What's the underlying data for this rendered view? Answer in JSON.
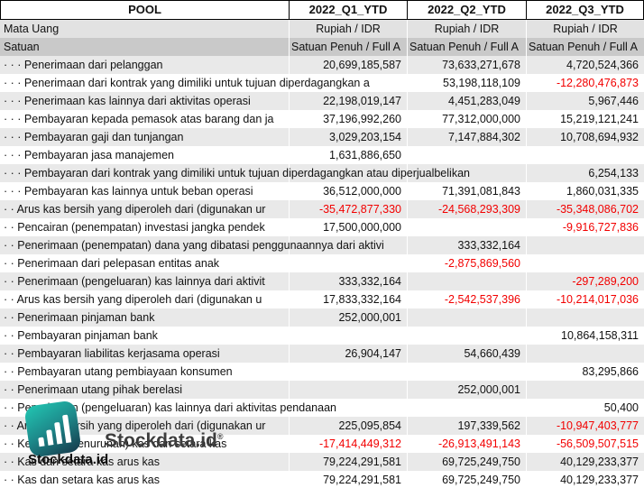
{
  "header": {
    "pool_label": "POOL",
    "columns": [
      "2022_Q1_YTD",
      "2022_Q2_YTD",
      "2022_Q3_YTD"
    ]
  },
  "meta": {
    "currency": {
      "label": "Mata Uang",
      "values": [
        "Rupiah / IDR",
        "Rupiah / IDR",
        "Rupiah / IDR"
      ]
    },
    "unit": {
      "label": "Satuan",
      "values": [
        "Satuan Penuh / Full A",
        "Satuan Penuh / Full A",
        "Satuan Penuh / Full A"
      ]
    }
  },
  "table": {
    "rows": [
      {
        "label": "· · · Penerimaan dari pelanggan",
        "values": [
          "20,699,185,587",
          "73,633,271,678",
          "4,720,524,366"
        ]
      },
      {
        "label": "· · · Penerimaan dari kontrak yang dimiliki untuk tujuan diperdagangkan a",
        "values": [
          "",
          "53,198,118,109",
          "-12,280,476,873"
        ]
      },
      {
        "label": "· · · Penerimaan kas lainnya dari aktivitas operasi",
        "values": [
          "22,198,019,147",
          "4,451,283,049",
          "5,967,446"
        ]
      },
      {
        "label": "· · · Pembayaran kepada pemasok atas barang dan ja",
        "values": [
          "37,196,992,260",
          "77,312,000,000",
          "15,219,121,241"
        ]
      },
      {
        "label": "· · · Pembayaran gaji dan tunjangan",
        "values": [
          "3,029,203,154",
          "7,147,884,302",
          "10,708,694,932"
        ]
      },
      {
        "label": "· · · Pembayaran jasa manajemen",
        "values": [
          "1,631,886,650",
          "",
          ""
        ]
      },
      {
        "label": "· · · Pembayaran dari kontrak yang dimiliki untuk tujuan diperdagangkan atau diperjualbelikan",
        "values": [
          "",
          "",
          "6,254,133"
        ]
      },
      {
        "label": "· · · Pembayaran kas lainnya untuk beban operasi",
        "values": [
          "36,512,000,000",
          "71,391,081,843",
          "1,860,031,335"
        ]
      },
      {
        "label": "· · Arus kas bersih yang diperoleh dari (digunakan ur",
        "values": [
          "-35,472,877,330",
          "-24,568,293,309",
          "-35,348,086,702"
        ]
      },
      {
        "label": "· · Pencairan (penempatan) investasi jangka pendek",
        "values": [
          "17,500,000,000",
          "",
          "-9,916,727,836"
        ]
      },
      {
        "label": "· · Penerimaan (penempatan) dana yang dibatasi penggunaannya dari aktivi",
        "values": [
          "",
          "333,332,164",
          ""
        ]
      },
      {
        "label": "· · Penerimaan dari pelepasan entitas anak",
        "values": [
          "",
          "-2,875,869,560",
          ""
        ]
      },
      {
        "label": "· · Penerimaan (pengeluaran) kas lainnya dari aktivit",
        "values": [
          "333,332,164",
          "",
          "-297,289,200"
        ]
      },
      {
        "label": "· · Arus kas bersih yang diperoleh dari (digunakan u",
        "values": [
          "17,833,332,164",
          "-2,542,537,396",
          "-10,214,017,036"
        ]
      },
      {
        "label": "· · Penerimaan pinjaman bank",
        "values": [
          "252,000,001",
          "",
          ""
        ]
      },
      {
        "label": "· · Pembayaran pinjaman bank",
        "values": [
          "",
          "",
          "10,864,158,311"
        ]
      },
      {
        "label": "· · Pembayaran liabilitas kerjasama operasi",
        "values": [
          "26,904,147",
          "54,660,439",
          ""
        ]
      },
      {
        "label": "· · Pembayaran utang pembiayaan konsumen",
        "values": [
          "",
          "",
          "83,295,866"
        ]
      },
      {
        "label": "· · Penerimaan utang pihak berelasi",
        "values": [
          "",
          "252,000,001",
          ""
        ]
      },
      {
        "label": "· · Penerimaan (pengeluaran) kas lainnya dari aktivitas pendanaan",
        "values": [
          "",
          "",
          "50,400"
        ]
      },
      {
        "label": "· · Arus kas bersih yang diperoleh dari (digunakan ur",
        "values": [
          "225,095,854",
          "197,339,562",
          "-10,947,403,777"
        ]
      },
      {
        "label": "· · Kenaikan (penurunan) kas dan setara kas",
        "values": [
          "-17,414,449,312",
          "-26,913,491,143",
          "-56,509,507,515"
        ]
      },
      {
        "label": "· · Kas dan setara kas arus kas",
        "values": [
          "79,224,291,581",
          "69,725,249,750",
          "40,129,233,377"
        ]
      },
      {
        "label": "· · Kas dan setara kas arus kas",
        "values": [
          "79,224,291,581",
          "69,725,249,750",
          "40,129,233,377"
        ]
      }
    ]
  },
  "watermark": {
    "logo_icon": "bar-chart-icon",
    "brand_large": "Stockdata.id",
    "registered_mark": "®",
    "brand_small": "Stockdata.id"
  },
  "colors": {
    "negative": "#f20000",
    "stripe": "#e9e9e9",
    "meta_currency_bg": "#e2e2e2",
    "meta_unit_bg": "#c9c9c9",
    "logo_teal": "#22c7b3",
    "logo_dark": "#16384a",
    "watermark_gray": "#3d3d3d"
  }
}
